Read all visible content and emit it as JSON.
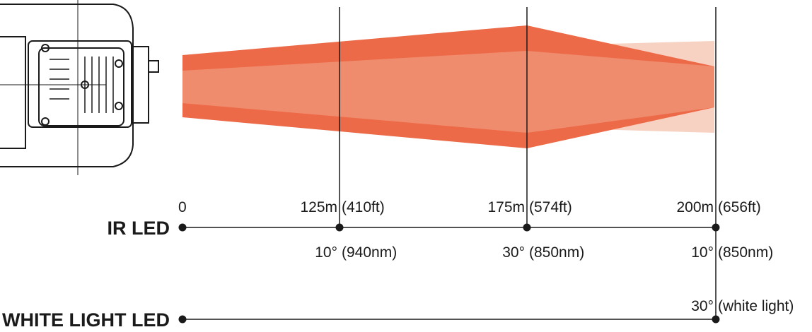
{
  "colors": {
    "beam_dark": "#ec6a48",
    "beam_mid": "#f08c6e",
    "beam_light": "#f7d2c2",
    "line": "#1a1a1a"
  },
  "device_icon": "camera-illuminator-icon",
  "distance_markers": {
    "origin": "0",
    "m125": {
      "meters": "125m",
      "feet": "(410ft)"
    },
    "m175": {
      "meters": "175m",
      "feet": "(574ft)"
    },
    "m200": {
      "meters": "200m",
      "feet": "(656ft)"
    }
  },
  "ir_led": {
    "label": "IR LED",
    "points": [
      {
        "angle": "10°",
        "wavelength": "(940nm)"
      },
      {
        "angle": "30°",
        "wavelength": "(850nm)"
      },
      {
        "angle": "10°",
        "wavelength": "(850nm)"
      }
    ]
  },
  "white_light_led": {
    "label": "WHITE LIGHT LED",
    "point": {
      "angle": "30°",
      "note": "(white light)"
    }
  }
}
